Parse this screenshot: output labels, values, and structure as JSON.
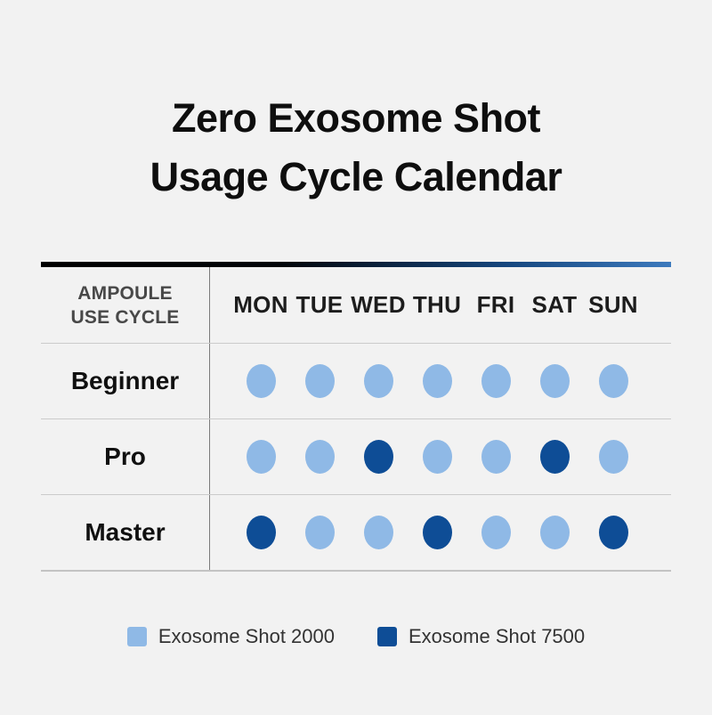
{
  "page": {
    "background": "#F2F2F2"
  },
  "title": {
    "line1": "Zero Exosome Shot",
    "line2": "Usage Cycle Calendar"
  },
  "table": {
    "corner_label_line1": "AMPOULE",
    "corner_label_line2": "USE CYCLE",
    "days": [
      "MON",
      "TUE",
      "WED",
      "THU",
      "FRI",
      "SAT",
      "SUN"
    ],
    "rows": [
      "Beginner",
      "Pro",
      "Master"
    ]
  },
  "legend": {
    "items": [
      {
        "label": "Exosome Shot 2000",
        "color": "#8FB9E6"
      },
      {
        "label": "Exosome Shot 7500",
        "color": "#0E4D96"
      }
    ]
  },
  "colors": {
    "dot_light": "#8FB9E6",
    "dot_dark": "#0E4D96",
    "top_bar_left": "#000000",
    "top_bar_right": "#3D7ABD"
  },
  "chart_data": {
    "type": "heatmap",
    "title": "Zero Exosome Shot Usage Cycle Calendar",
    "categories": [
      "MON",
      "TUE",
      "WED",
      "THU",
      "FRI",
      "SAT",
      "SUN"
    ],
    "row_label_header": "AMPOULE USE CYCLE",
    "series": [
      {
        "name": "Beginner",
        "values": [
          "2000",
          "2000",
          "2000",
          "2000",
          "2000",
          "2000",
          "2000"
        ]
      },
      {
        "name": "Pro",
        "values": [
          "2000",
          "2000",
          "7500",
          "2000",
          "2000",
          "7500",
          "2000"
        ]
      },
      {
        "name": "Master",
        "values": [
          "7500",
          "2000",
          "2000",
          "7500",
          "2000",
          "2000",
          "7500"
        ]
      }
    ],
    "value_legend": {
      "2000": {
        "label": "Exosome Shot 2000",
        "color": "#8FB9E6"
      },
      "7500": {
        "label": "Exosome Shot 7500",
        "color": "#0E4D96"
      }
    },
    "legend_position": "bottom",
    "grid": "horizontal-dividers"
  }
}
